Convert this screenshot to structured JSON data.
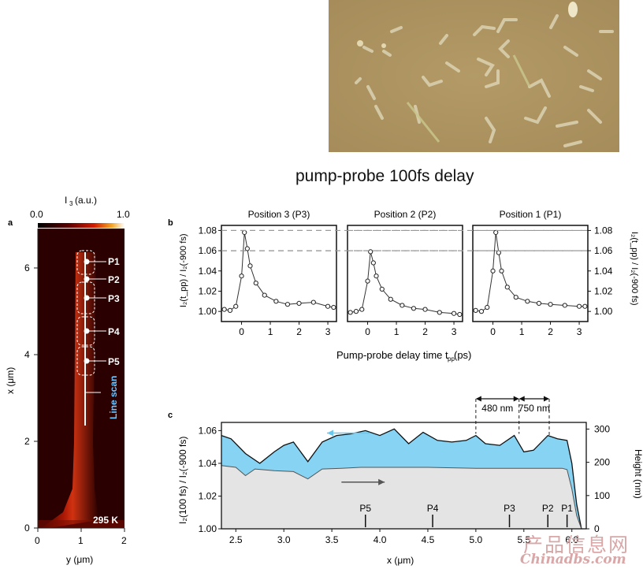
{
  "heading": "pump-probe  100fs delay",
  "watermark": {
    "cn": "产品信息网",
    "en": "Chinadbs.com"
  },
  "panel_a": {
    "label": "a",
    "colorbar_label": "I",
    "colorbar_sub": "3",
    "colorbar_unit": "(a.u.)",
    "colorbar_ticks": [
      "0.0",
      "1.0"
    ],
    "x_ticks": [
      "0",
      "1",
      "2"
    ],
    "y_ticks": [
      "0",
      "2",
      "4",
      "6"
    ],
    "xlabel": "y (μm)",
    "ylabel": "x (μm)",
    "temperature": "295 K",
    "scan_label": "Line scan",
    "positions": [
      "P1",
      "P2",
      "P3",
      "P4",
      "P5"
    ]
  },
  "panel_b": {
    "label": "b",
    "titles": [
      "Position 3 (P3)",
      "Position 2 (P2)",
      "Position 1 (P1)"
    ],
    "y_ticks": [
      "1.00",
      "1.02",
      "1.04",
      "1.06",
      "1.08"
    ],
    "x_ticks": [
      "0",
      "1",
      "2",
      "3"
    ],
    "ylabel": "I₂(t_pp) / I₂(-900 fs)",
    "xlabel": "Pump-probe delay time t",
    "xlabel_sub": "pp",
    "xlabel_unit": " (ps)"
  },
  "panel_c": {
    "label": "c",
    "x_ticks": [
      "2.5",
      "3.0",
      "3.5",
      "4.0",
      "4.5",
      "5.0",
      "5.5",
      "6.0"
    ],
    "y_left_ticks": [
      "1.00",
      "1.02",
      "1.04",
      "1.06"
    ],
    "y_right_ticks": [
      "0",
      "100",
      "200",
      "300"
    ],
    "xlabel": "x (μm)",
    "ylabel_left": "I₂(100 fs) / I₂(-900 fs)",
    "ylabel_right": "Height (nm)",
    "positions": [
      "P5",
      "P4",
      "P3",
      "P2",
      "P1"
    ],
    "dimension_labels": [
      "480 nm",
      "750 nm"
    ]
  },
  "chart_data": [
    {
      "type": "scatter",
      "title": "Position 3 (P3)",
      "xlabel": "Pump-probe delay time t_pp (ps)",
      "ylabel": "I₂(t_pp) / I₂(-900 fs)",
      "xlim": [
        -0.7,
        3.3
      ],
      "ylim": [
        0.99,
        1.085
      ],
      "x": [
        -0.6,
        -0.4,
        -0.2,
        0.0,
        0.1,
        0.2,
        0.3,
        0.5,
        0.8,
        1.2,
        1.6,
        2.0,
        2.5,
        3.0,
        3.2
      ],
      "y": [
        1.002,
        1.001,
        1.005,
        1.035,
        1.078,
        1.062,
        1.045,
        1.028,
        1.016,
        1.01,
        1.007,
        1.008,
        1.009,
        1.005,
        1.004
      ]
    },
    {
      "type": "scatter",
      "title": "Position 2 (P2)",
      "xlabel": "Pump-probe delay time t_pp (ps)",
      "ylabel": "I₂(t_pp) / I₂(-900 fs)",
      "xlim": [
        -0.7,
        3.3
      ],
      "ylim": [
        0.99,
        1.085
      ],
      "x": [
        -0.6,
        -0.4,
        -0.2,
        0.0,
        0.1,
        0.2,
        0.3,
        0.5,
        0.8,
        1.2,
        1.6,
        2.0,
        2.5,
        3.0,
        3.2
      ],
      "y": [
        0.999,
        1.0,
        1.002,
        1.03,
        1.059,
        1.048,
        1.035,
        1.022,
        1.012,
        1.006,
        1.003,
        1.002,
        0.999,
        0.998,
        0.997
      ]
    },
    {
      "type": "scatter",
      "title": "Position 1 (P1)",
      "xlabel": "Pump-probe delay time t_pp (ps)",
      "ylabel": "I₂(t_pp) / I₂(-900 fs)",
      "xlim": [
        -0.7,
        3.3
      ],
      "ylim": [
        0.99,
        1.085
      ],
      "x": [
        -0.6,
        -0.4,
        -0.2,
        0.0,
        0.1,
        0.2,
        0.3,
        0.5,
        0.8,
        1.2,
        1.6,
        2.0,
        2.5,
        3.0,
        3.2
      ],
      "y": [
        1.001,
        1.0,
        1.004,
        1.04,
        1.078,
        1.058,
        1.04,
        1.024,
        1.014,
        1.01,
        1.008,
        1.007,
        1.006,
        1.005,
        1.005
      ]
    },
    {
      "type": "area",
      "xlabel": "x (μm)",
      "ylabel": "I₂(100 fs) / I₂(-900 fs)",
      "xlim": [
        2.35,
        6.15
      ],
      "ylim": [
        1.0,
        1.065
      ],
      "series": [
        {
          "x": [
            2.35,
            2.45,
            2.6,
            2.75,
            2.9,
            3.0,
            3.1,
            3.25,
            3.4,
            3.55,
            3.7,
            3.85,
            4.0,
            4.15,
            4.3,
            4.45,
            4.6,
            4.75,
            4.9,
            5.0,
            5.1,
            5.25,
            5.4,
            5.5,
            5.6,
            5.75,
            5.85,
            5.95,
            6.0,
            6.05,
            6.1
          ],
          "y": [
            1.057,
            1.055,
            1.046,
            1.04,
            1.047,
            1.051,
            1.053,
            1.041,
            1.053,
            1.057,
            1.058,
            1.06,
            1.057,
            1.061,
            1.052,
            1.059,
            1.054,
            1.053,
            1.054,
            1.057,
            1.052,
            1.051,
            1.057,
            1.047,
            1.048,
            1.057,
            1.055,
            1.054,
            1.04,
            1.015,
            1.0
          ]
        }
      ],
      "y2label": "Height (nm)",
      "y2lim": [
        0,
        320
      ],
      "height_series": {
        "x": [
          2.35,
          2.5,
          2.6,
          2.7,
          2.9,
          3.1,
          3.25,
          3.4,
          3.6,
          3.8,
          4.0,
          4.5,
          5.0,
          5.5,
          5.9,
          5.95,
          6.0,
          6.05,
          6.1
        ],
        "y": [
          190,
          185,
          160,
          180,
          175,
          172,
          150,
          180,
          182,
          185,
          185,
          185,
          182,
          182,
          182,
          178,
          120,
          40,
          0
        ]
      }
    }
  ]
}
